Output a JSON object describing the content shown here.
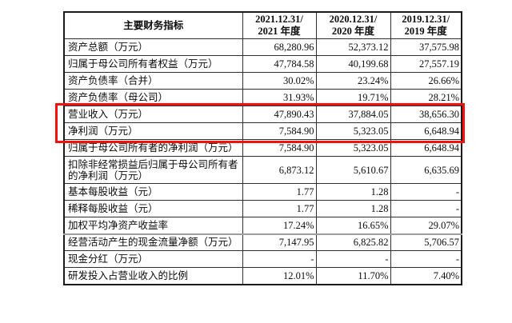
{
  "table": {
    "header": {
      "indicator_label": "主要财务指标",
      "period_columns": [
        {
          "date": "2021.12.31/",
          "year": "2021 年度"
        },
        {
          "date": "2020.12.31/",
          "year": "2020 年度"
        },
        {
          "date": "2019.12.31/",
          "year": "2019 年度"
        }
      ]
    },
    "rows": [
      {
        "label": "资产总额（万元）",
        "values": [
          "68,280.96",
          "52,373.12",
          "37,575.98"
        ],
        "highlight": false,
        "tall": false,
        "gray_top": false
      },
      {
        "label": "归属于母公司所有者权益（万元）",
        "values": [
          "47,784.58",
          "40,199.68",
          "27,557.19"
        ],
        "highlight": false,
        "tall": false,
        "gray_top": false
      },
      {
        "label": "资产负债率（合并）",
        "values": [
          "30.02%",
          "23.24%",
          "26.66%"
        ],
        "highlight": false,
        "tall": false,
        "gray_top": false
      },
      {
        "label": "资产负债率（母公司）",
        "values": [
          "31.93%",
          "19.71%",
          "28.21%"
        ],
        "highlight": false,
        "tall": false,
        "gray_top": false
      },
      {
        "label": "营业收入（万元）",
        "values": [
          "47,890.43",
          "37,884.05",
          "38,656.30"
        ],
        "highlight": true,
        "tall": false,
        "gray_top": false
      },
      {
        "label": "净利润（万元）",
        "values": [
          "7,584.90",
          "5,323.05",
          "6,648.94"
        ],
        "highlight": true,
        "tall": false,
        "gray_top": false
      },
      {
        "label": "归属于母公司所有者的净利润（万元）",
        "values": [
          "7,584.90",
          "5,323.05",
          "6,648.94"
        ],
        "highlight": false,
        "tall": false,
        "gray_top": false
      },
      {
        "label": "扣除非经常损益后归属于母公司所有者的净利润（万元）",
        "values": [
          "6,873.12",
          "5,610.67",
          "6,635.69"
        ],
        "highlight": false,
        "tall": true,
        "gray_top": false
      },
      {
        "label": "基本每股收益（元）",
        "values": [
          "1.77",
          "1.28",
          "-"
        ],
        "highlight": false,
        "tall": false,
        "gray_top": false
      },
      {
        "label": "稀释每股收益（元）",
        "values": [
          "1.77",
          "1.28",
          "-"
        ],
        "highlight": false,
        "tall": false,
        "gray_top": false
      },
      {
        "label": "加权平均净资产收益率",
        "values": [
          "17.24%",
          "16.65%",
          "29.07%"
        ],
        "highlight": false,
        "tall": false,
        "gray_top": false
      },
      {
        "label": "经营活动产生的现金流量净额（万元）",
        "values": [
          "7,147.95",
          "6,825.82",
          "5,706.57"
        ],
        "highlight": false,
        "tall": false,
        "gray_top": true
      },
      {
        "label": "现金分红（万元）",
        "values": [
          "-",
          "-",
          "-"
        ],
        "highlight": false,
        "tall": false,
        "gray_top": false
      },
      {
        "label": "研发投入占营业收入的比例",
        "values": [
          "12.01%",
          "11.70%",
          "7.40%"
        ],
        "highlight": false,
        "tall": false,
        "gray_top": false
      }
    ]
  },
  "colors": {
    "highlight_border": "#f6100d",
    "grid_line": "#303030",
    "outer_border": "#1a1a1a",
    "text": "#0c0c0c",
    "gray_separator": "#9e9e9e",
    "background": "#ffffff"
  }
}
